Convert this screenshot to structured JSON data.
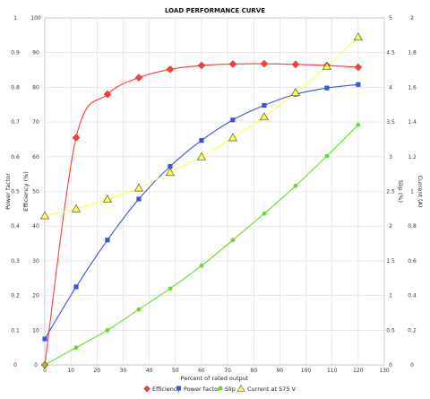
{
  "chart_data": {
    "type": "scatter",
    "title": "LOAD PERFORMANCE CURVE",
    "xlabel": "Percent of rated output",
    "xlim": [
      0,
      130
    ],
    "x_ticks": [
      0,
      10,
      20,
      30,
      40,
      50,
      60,
      70,
      80,
      90,
      100,
      110,
      120,
      130
    ],
    "grid": true,
    "legend_position": "bottom",
    "axes": {
      "power_factor": {
        "label": "Power factor",
        "range": [
          0,
          1
        ],
        "ticks": [
          "0",
          "0.1",
          "0.2",
          "0.3",
          "0.4",
          "0.5",
          "0.6",
          "0.7",
          "0.8",
          "0.9",
          "1"
        ]
      },
      "efficiency": {
        "label": "Efficiency (%)",
        "range": [
          0,
          100
        ],
        "ticks": [
          "0",
          "10",
          "20",
          "30",
          "40",
          "50",
          "60",
          "70",
          "80",
          "90",
          "100"
        ]
      },
      "slip": {
        "label": "Slip (%)",
        "range": [
          0,
          5
        ],
        "ticks": [
          "0",
          "0.5",
          "1",
          "1.5",
          "2",
          "2.5",
          "3",
          "3.5",
          "4",
          "4.5",
          "5"
        ]
      },
      "current": {
        "label": "Current (A)",
        "range": [
          0,
          2
        ],
        "ticks": [
          "0",
          "0.2",
          "0.4",
          "0.6",
          "0.8",
          "1",
          "1.2",
          "1.4",
          "1.6",
          "1.8",
          "2"
        ]
      }
    },
    "series": [
      {
        "name": "Efficiency",
        "axis": "efficiency",
        "color": "#ff3b3b",
        "marker": "diamond",
        "x": [
          0,
          12,
          24,
          36,
          48,
          60,
          72,
          84,
          96,
          108,
          120
        ],
        "y": [
          0,
          65.5,
          78,
          82.8,
          85.2,
          86.3,
          86.7,
          86.8,
          86.6,
          86.3,
          85.8
        ]
      },
      {
        "name": "Power factor",
        "axis": "power_factor",
        "color": "#3b55d6",
        "marker": "square",
        "x": [
          0,
          12,
          24,
          36,
          48,
          60,
          72,
          84,
          96,
          108,
          120
        ],
        "y": [
          0.075,
          0.225,
          0.36,
          0.478,
          0.572,
          0.647,
          0.706,
          0.748,
          0.78,
          0.798,
          0.808
        ]
      },
      {
        "name": "Slip",
        "axis": "slip",
        "color": "#66dd22",
        "marker": "circle",
        "x": [
          0,
          12,
          24,
          36,
          48,
          60,
          72,
          84,
          96,
          108,
          120
        ],
        "y": [
          0,
          0.25,
          0.5,
          0.8,
          1.1,
          1.43,
          1.8,
          2.18,
          2.58,
          3.01,
          3.46
        ]
      },
      {
        "name": "Current at 575 V",
        "axis": "current",
        "color": "#ffff44",
        "marker": "triangle",
        "x": [
          0,
          12,
          24,
          36,
          48,
          60,
          72,
          84,
          96,
          108,
          120
        ],
        "y": [
          0.86,
          0.9,
          0.955,
          1.02,
          1.11,
          1.2,
          1.31,
          1.43,
          1.57,
          1.72,
          1.89
        ]
      }
    ]
  }
}
